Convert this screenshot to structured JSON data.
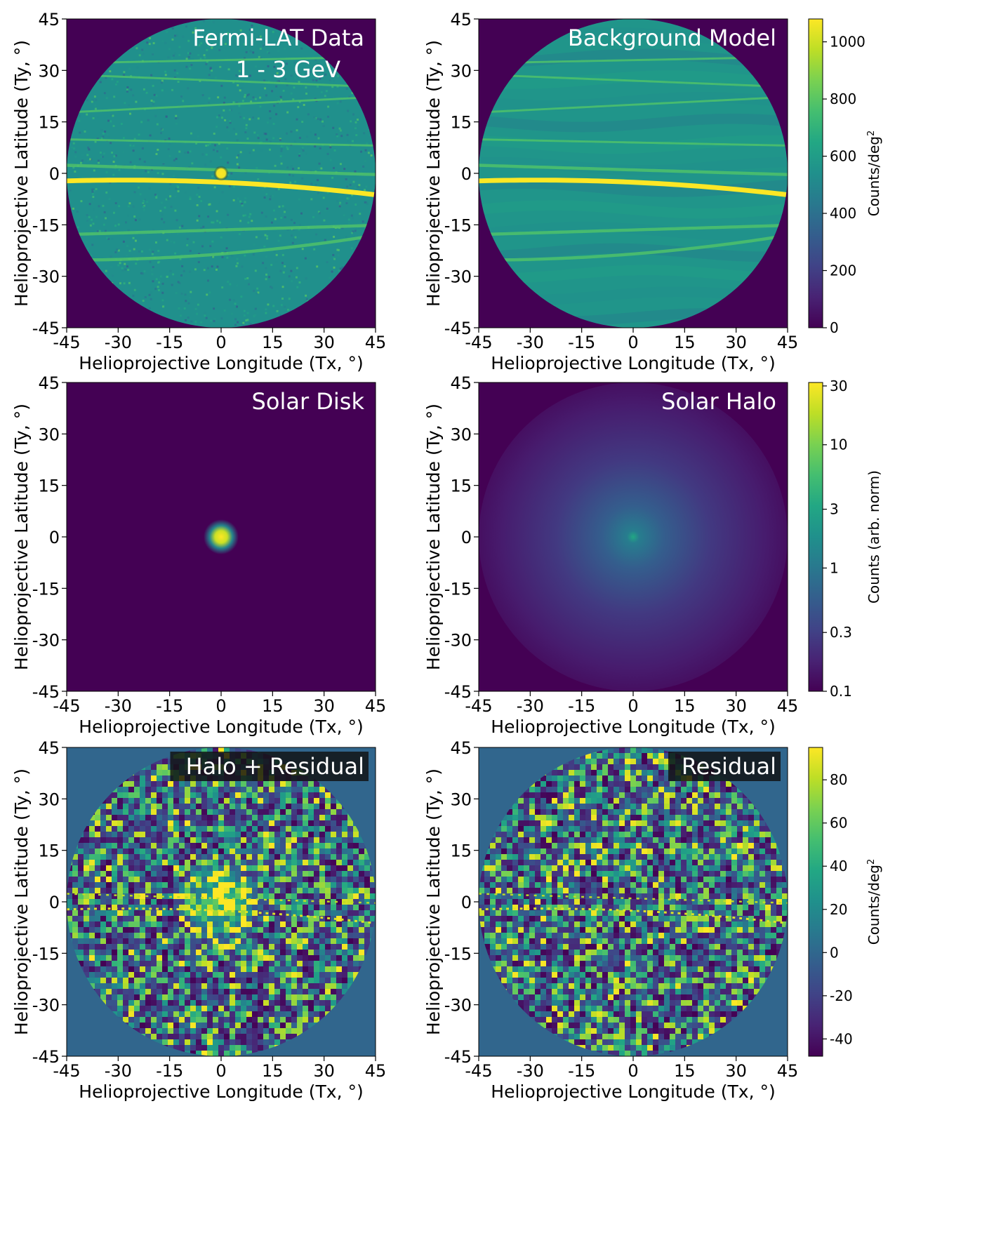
{
  "chart_data": [
    {
      "type": "heatmap",
      "panel": "data",
      "label": "Fermi-LAT Data",
      "label2": "1 - 3 GeV",
      "label_box": false,
      "xlabel": "Helioprojective Longitude (Tx, °)",
      "ylabel": "Helioprojective Latitude (Ty, °)",
      "xlim": [
        -45,
        45
      ],
      "ylim": [
        -45,
        45
      ],
      "xticks": [
        "-45",
        "-30",
        "-15",
        "0",
        "15",
        "30",
        "45"
      ],
      "yticks": [
        "45",
        "30",
        "15",
        "0",
        "-15",
        "-30",
        "-45"
      ],
      "colorbar": null
    },
    {
      "type": "heatmap",
      "panel": "background",
      "label": "Background Model",
      "label_box": false,
      "xlabel": "Helioprojective Longitude (Tx, °)",
      "ylabel": "Helioprojective Latitude (Ty, °)",
      "xlim": [
        -45,
        45
      ],
      "ylim": [
        -45,
        45
      ],
      "xticks": [
        "-45",
        "-30",
        "-15",
        "0",
        "15",
        "30",
        "45"
      ],
      "yticks": [
        "45",
        "30",
        "15",
        "0",
        "-15",
        "-30",
        "-45"
      ],
      "colorbar": {
        "label": "Counts/deg",
        "label_sup": "2",
        "range": [
          0,
          1080
        ],
        "ticks": [
          0,
          200,
          400,
          600,
          800,
          1000
        ],
        "tick_labels": [
          "0",
          "200",
          "400",
          "600",
          "800",
          "1000"
        ],
        "scale": "linear"
      }
    },
    {
      "type": "heatmap",
      "panel": "disk",
      "label": "Solar Disk",
      "label_box": false,
      "xlabel": "Helioprojective Longitude (Tx, °)",
      "ylabel": "Helioprojective Latitude (Ty, °)",
      "xlim": [
        -45,
        45
      ],
      "ylim": [
        -45,
        45
      ],
      "xticks": [
        "-45",
        "-30",
        "-15",
        "0",
        "15",
        "30",
        "45"
      ],
      "yticks": [
        "45",
        "30",
        "15",
        "0",
        "-15",
        "-30",
        "-45"
      ],
      "colorbar": null
    },
    {
      "type": "heatmap",
      "panel": "halo",
      "label": "Solar Halo",
      "label_box": false,
      "xlabel": "Helioprojective Longitude (Tx, °)",
      "ylabel": "Helioprojective Latitude (Ty, °)",
      "xlim": [
        -45,
        45
      ],
      "ylim": [
        -45,
        45
      ],
      "xticks": [
        "-45",
        "-30",
        "-15",
        "0",
        "15",
        "30",
        "45"
      ],
      "yticks": [
        "45",
        "30",
        "15",
        "0",
        "-15",
        "-30",
        "-45"
      ],
      "colorbar": {
        "label": "Counts (arb. norm)",
        "label_sup": "",
        "range": [
          0.1,
          32
        ],
        "ticks": [
          0.1,
          0.3,
          1,
          3,
          10,
          30
        ],
        "tick_labels": [
          "0.1",
          "0.3",
          "1",
          "3",
          "10",
          "30"
        ],
        "scale": "log"
      }
    },
    {
      "type": "heatmap",
      "panel": "halo_residual",
      "label": "Halo + Residual",
      "label_box": true,
      "xlabel": "Helioprojective Longitude (Tx, °)",
      "ylabel": "Helioprojective Latitude (Ty, °)",
      "xlim": [
        -45,
        45
      ],
      "ylim": [
        -45,
        45
      ],
      "xticks": [
        "-45",
        "-30",
        "-15",
        "0",
        "15",
        "30",
        "45"
      ],
      "yticks": [
        "45",
        "30",
        "15",
        "0",
        "-15",
        "-30",
        "-45"
      ],
      "colorbar": null
    },
    {
      "type": "heatmap",
      "panel": "residual",
      "label": "Residual",
      "label_box": true,
      "xlabel": "Helioprojective Longitude (Tx, °)",
      "ylabel": "Helioprojective Latitude (Ty, °)",
      "xlim": [
        -45,
        45
      ],
      "ylim": [
        -45,
        45
      ],
      "xticks": [
        "-45",
        "-30",
        "-15",
        "0",
        "15",
        "30",
        "45"
      ],
      "yticks": [
        "45",
        "30",
        "15",
        "0",
        "-15",
        "-30",
        "-45"
      ],
      "colorbar": {
        "label": "Counts/deg",
        "label_sup": "2",
        "range": [
          -48,
          95
        ],
        "ticks": [
          -40,
          -20,
          0,
          20,
          40,
          60,
          80
        ],
        "tick_labels": [
          "-40",
          "-20",
          "0",
          "20",
          "40",
          "60",
          "80"
        ],
        "scale": "linear"
      }
    }
  ]
}
